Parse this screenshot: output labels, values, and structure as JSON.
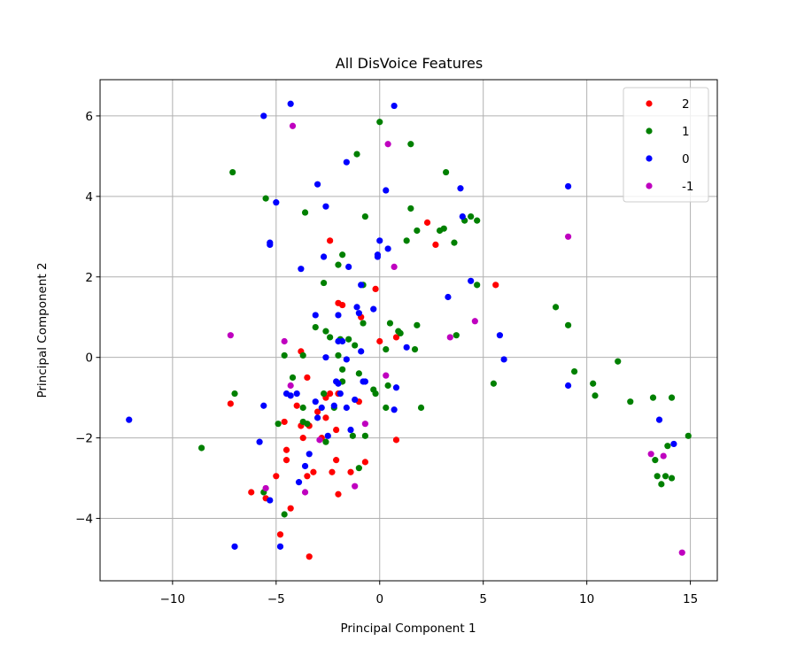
{
  "chart_data": {
    "type": "scatter",
    "title": "All DisVoice Features",
    "xlabel": "Principal Component 1",
    "ylabel": "Principal Component 2",
    "xlim": [
      -13.5,
      16.3
    ],
    "ylim": [
      -5.55,
      6.9
    ],
    "xticks": [
      -10,
      -5,
      0,
      5,
      10,
      15
    ],
    "yticks": [
      -4,
      -2,
      0,
      2,
      4,
      6
    ],
    "xtick_labels": [
      "−10",
      "−5",
      "0",
      "5",
      "10",
      "15"
    ],
    "ytick_labels": [
      "−4",
      "−2",
      "0",
      "2",
      "4",
      "6"
    ],
    "grid": true,
    "legend_position": "top-right",
    "series": [
      {
        "name": "2",
        "color": "#ff0000",
        "points": [
          [
            -2.4,
            2.9
          ],
          [
            2.3,
            3.35
          ],
          [
            2.7,
            2.8
          ],
          [
            5.6,
            1.8
          ],
          [
            -0.2,
            1.7
          ],
          [
            -1.8,
            1.3
          ],
          [
            -2.0,
            1.35
          ],
          [
            -0.9,
            1.0
          ],
          [
            0.0,
            0.4
          ],
          [
            0.8,
            0.5
          ],
          [
            -3.8,
            0.15
          ],
          [
            -3.5,
            -0.5
          ],
          [
            -7.2,
            -1.15
          ],
          [
            -4.0,
            -1.2
          ],
          [
            -2.6,
            -1.0
          ],
          [
            -2.4,
            -0.9
          ],
          [
            -2.0,
            -0.9
          ],
          [
            -1.0,
            -1.1
          ],
          [
            -3.0,
            -1.35
          ],
          [
            -2.6,
            -1.5
          ],
          [
            -4.6,
            -1.6
          ],
          [
            -3.4,
            -1.7
          ],
          [
            -3.7,
            -2.0
          ],
          [
            -2.1,
            -1.8
          ],
          [
            -2.8,
            -2.0
          ],
          [
            -3.8,
            -1.7
          ],
          [
            0.8,
            -2.05
          ],
          [
            -4.5,
            -2.3
          ],
          [
            -4.5,
            -2.55
          ],
          [
            -2.1,
            -2.55
          ],
          [
            -0.7,
            -2.6
          ],
          [
            -3.5,
            -2.95
          ],
          [
            -3.2,
            -2.85
          ],
          [
            -2.3,
            -2.85
          ],
          [
            -1.4,
            -2.85
          ],
          [
            -5.0,
            -2.95
          ],
          [
            -6.2,
            -3.35
          ],
          [
            -5.5,
            -3.5
          ],
          [
            -2.0,
            -3.4
          ],
          [
            -4.3,
            -3.75
          ],
          [
            -4.8,
            -4.4
          ],
          [
            -3.4,
            -4.95
          ]
        ]
      },
      {
        "name": "1",
        "color": "#008000",
        "points": [
          [
            -7.1,
            4.6
          ],
          [
            -5.5,
            3.95
          ],
          [
            -3.6,
            3.6
          ],
          [
            0.0,
            5.85
          ],
          [
            -1.1,
            5.05
          ],
          [
            1.5,
            5.3
          ],
          [
            3.2,
            4.6
          ],
          [
            -0.7,
            3.5
          ],
          [
            1.5,
            3.7
          ],
          [
            1.8,
            3.15
          ],
          [
            2.9,
            3.15
          ],
          [
            3.1,
            3.2
          ],
          [
            1.3,
            2.9
          ],
          [
            3.6,
            2.85
          ],
          [
            4.1,
            3.4
          ],
          [
            4.4,
            3.5
          ],
          [
            4.7,
            3.4
          ],
          [
            -1.8,
            2.55
          ],
          [
            -2.0,
            2.3
          ],
          [
            -2.7,
            1.85
          ],
          [
            -0.8,
            1.8
          ],
          [
            4.7,
            1.8
          ],
          [
            -3.1,
            0.75
          ],
          [
            -2.6,
            0.65
          ],
          [
            -2.4,
            0.5
          ],
          [
            -1.9,
            0.45
          ],
          [
            -1.5,
            0.45
          ],
          [
            -1.2,
            0.3
          ],
          [
            -0.8,
            0.85
          ],
          [
            0.5,
            0.85
          ],
          [
            0.9,
            0.65
          ],
          [
            1.0,
            0.6
          ],
          [
            1.8,
            0.8
          ],
          [
            0.3,
            0.2
          ],
          [
            1.7,
            0.2
          ],
          [
            3.7,
            0.55
          ],
          [
            -3.7,
            0.05
          ],
          [
            -2.0,
            0.05
          ],
          [
            -4.6,
            0.05
          ],
          [
            -4.2,
            -0.5
          ],
          [
            -1.8,
            -0.3
          ],
          [
            -1.0,
            -0.4
          ],
          [
            -7.0,
            -0.9
          ],
          [
            -2.7,
            -0.9
          ],
          [
            -1.8,
            -0.6
          ],
          [
            -0.3,
            -0.8
          ],
          [
            -0.2,
            -0.9
          ],
          [
            0.3,
            -1.25
          ],
          [
            0.4,
            -0.7
          ],
          [
            2.0,
            -1.25
          ],
          [
            5.5,
            -0.65
          ],
          [
            8.5,
            1.25
          ],
          [
            9.1,
            0.8
          ],
          [
            9.4,
            -0.35
          ],
          [
            10.3,
            -0.65
          ],
          [
            10.4,
            -0.95
          ],
          [
            11.5,
            -0.1
          ],
          [
            12.1,
            -1.1
          ],
          [
            13.2,
            -1.0
          ],
          [
            14.1,
            -1.0
          ],
          [
            14.9,
            -1.95
          ],
          [
            13.9,
            -2.2
          ],
          [
            13.3,
            -2.55
          ],
          [
            13.4,
            -2.95
          ],
          [
            13.8,
            -2.95
          ],
          [
            14.1,
            -3.0
          ],
          [
            13.6,
            -3.15
          ],
          [
            -3.7,
            -1.25
          ],
          [
            -2.2,
            -1.25
          ],
          [
            -3.7,
            -1.6
          ],
          [
            -3.5,
            -1.65
          ],
          [
            -4.9,
            -1.65
          ],
          [
            -1.3,
            -1.95
          ],
          [
            -0.7,
            -1.95
          ],
          [
            -2.6,
            -2.1
          ],
          [
            -1.0,
            -2.75
          ],
          [
            -8.6,
            -2.25
          ],
          [
            -5.6,
            -3.35
          ],
          [
            -4.6,
            -3.9
          ]
        ]
      },
      {
        "name": "0",
        "color": "#0000ff",
        "points": [
          [
            -4.3,
            6.3
          ],
          [
            -5.6,
            6.0
          ],
          [
            0.7,
            6.25
          ],
          [
            -1.6,
            4.85
          ],
          [
            -3.0,
            4.3
          ],
          [
            0.3,
            4.15
          ],
          [
            -5.0,
            3.85
          ],
          [
            -2.6,
            3.75
          ],
          [
            3.9,
            4.2
          ],
          [
            9.1,
            4.25
          ],
          [
            4.0,
            3.5
          ],
          [
            0.0,
            2.9
          ],
          [
            -5.3,
            2.85
          ],
          [
            -5.3,
            2.8
          ],
          [
            0.4,
            2.7
          ],
          [
            -0.1,
            2.55
          ],
          [
            -0.1,
            2.5
          ],
          [
            -2.7,
            2.5
          ],
          [
            -3.8,
            2.2
          ],
          [
            -1.5,
            2.25
          ],
          [
            4.4,
            1.9
          ],
          [
            3.3,
            1.5
          ],
          [
            -0.9,
            1.8
          ],
          [
            -3.1,
            1.05
          ],
          [
            -2.0,
            1.05
          ],
          [
            -1.1,
            1.25
          ],
          [
            -1.0,
            1.1
          ],
          [
            -0.3,
            1.2
          ],
          [
            -2.0,
            0.4
          ],
          [
            -1.8,
            0.4
          ],
          [
            1.3,
            0.25
          ],
          [
            5.8,
            0.55
          ],
          [
            6.0,
            -0.05
          ],
          [
            -0.9,
            0.15
          ],
          [
            -2.6,
            0.0
          ],
          [
            -1.6,
            -0.05
          ],
          [
            -4.5,
            -0.9
          ],
          [
            -4.0,
            -0.9
          ],
          [
            -3.1,
            -1.1
          ],
          [
            -2.1,
            -0.6
          ],
          [
            -2.0,
            -0.65
          ],
          [
            -1.9,
            -0.9
          ],
          [
            -2.2,
            -1.2
          ],
          [
            -1.6,
            -1.25
          ],
          [
            -1.2,
            -1.05
          ],
          [
            -0.8,
            -0.6
          ],
          [
            0.7,
            -1.3
          ],
          [
            0.8,
            -0.75
          ],
          [
            9.1,
            -0.7
          ],
          [
            -5.6,
            -1.2
          ],
          [
            -4.3,
            -0.95
          ],
          [
            -2.8,
            -1.25
          ],
          [
            -3.0,
            -1.5
          ],
          [
            -1.4,
            -1.8
          ],
          [
            -2.5,
            -1.95
          ],
          [
            -5.8,
            -2.1
          ],
          [
            -3.4,
            -2.4
          ],
          [
            -3.6,
            -2.7
          ],
          [
            -3.9,
            -3.1
          ],
          [
            -5.3,
            -3.55
          ],
          [
            -12.1,
            -1.55
          ],
          [
            13.5,
            -1.55
          ],
          [
            14.2,
            -2.15
          ],
          [
            -7.0,
            -4.7
          ],
          [
            -4.8,
            -4.7
          ],
          [
            -0.7,
            -0.6
          ]
        ]
      },
      {
        "name": "-1",
        "color": "#bf00bf",
        "points": [
          [
            -4.2,
            5.75
          ],
          [
            0.4,
            5.3
          ],
          [
            9.1,
            3.0
          ],
          [
            0.7,
            2.25
          ],
          [
            -7.2,
            0.55
          ],
          [
            -4.6,
            0.4
          ],
          [
            3.4,
            0.5
          ],
          [
            4.6,
            0.9
          ],
          [
            -4.3,
            -0.7
          ],
          [
            0.3,
            -0.45
          ],
          [
            -0.7,
            -1.65
          ],
          [
            -2.9,
            -2.05
          ],
          [
            -5.5,
            -3.25
          ],
          [
            -3.6,
            -3.35
          ],
          [
            -1.2,
            -3.2
          ],
          [
            13.1,
            -2.4
          ],
          [
            13.7,
            -2.45
          ],
          [
            14.6,
            -4.85
          ]
        ]
      }
    ]
  }
}
